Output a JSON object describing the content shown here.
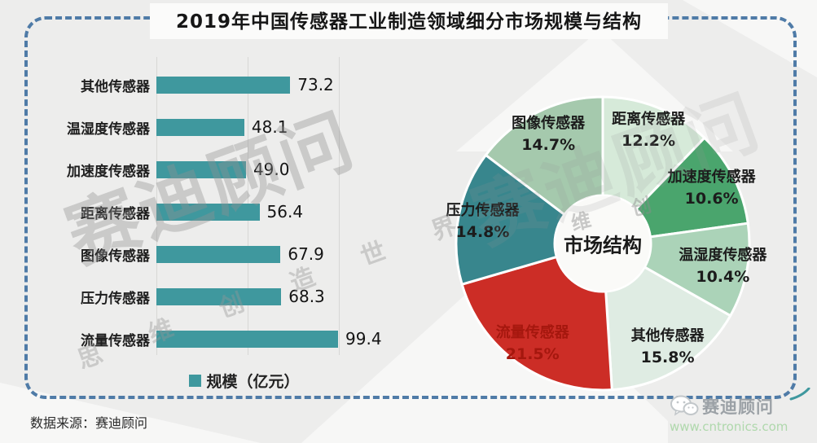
{
  "title": "2019年中国传感器工业制造领域细分市场规模与结构",
  "source_note": "数据来源：赛迪顾问",
  "watermark": {
    "brand": "赛迪顾问",
    "slogan": "思 维 创 造 世 界",
    "center_chars": "维 创"
  },
  "footer": {
    "brand": "赛迪顾问",
    "website": "www.cntronics.com",
    "icon": "wechat-icon"
  },
  "colors": {
    "bar": "#3F989E",
    "frame_dash": "#4F7BA7",
    "brand_gray": "#9BA1A6",
    "url_green": "#AFD8AC"
  },
  "chart_data": [
    {
      "type": "bar",
      "orientation": "horizontal",
      "legend": "规模（亿元）",
      "categories": [
        "其他传感器",
        "温湿度传感器",
        "加速度传感器",
        "距离传感器",
        "图像传感器",
        "压力传感器",
        "流量传感器"
      ],
      "values": [
        73.2,
        48.1,
        49.0,
        56.4,
        67.9,
        68.3,
        99.4
      ],
      "values_display": [
        "73.2",
        "48.1",
        "49.0",
        "56.4",
        "67.9",
        "68.3",
        "99.4"
      ],
      "xlim": [
        0,
        100
      ],
      "gridlines": [
        0,
        50,
        100
      ],
      "grid": "vertical-only",
      "bar_color": "#3F989E"
    },
    {
      "type": "pie",
      "donut": true,
      "center_label": "市场结构",
      "start_angle_deg": 0,
      "clockwise": true,
      "slices": [
        {
          "label": "距离传感器",
          "value": 12.2,
          "display": "12.2%",
          "color": "#D6EAD9"
        },
        {
          "label": "加速度传感器",
          "value": 10.6,
          "display": "10.6%",
          "color": "#4AA56D"
        },
        {
          "label": "温湿度传感器",
          "value": 10.4,
          "display": "10.4%",
          "color": "#ABD3B8"
        },
        {
          "label": "其他传感器",
          "value": 15.8,
          "display": "15.8%",
          "color": "#DFECE3"
        },
        {
          "label": "流量传感器",
          "value": 21.5,
          "display": "21.5%",
          "color": "#CC2D26",
          "label_color": "#A5170E"
        },
        {
          "label": "压力传感器",
          "value": 14.8,
          "display": "14.8%",
          "color": "#38868D"
        },
        {
          "label": "图像传感器",
          "value": 14.7,
          "display": "14.7%",
          "color": "#A5C9AD"
        }
      ]
    }
  ]
}
